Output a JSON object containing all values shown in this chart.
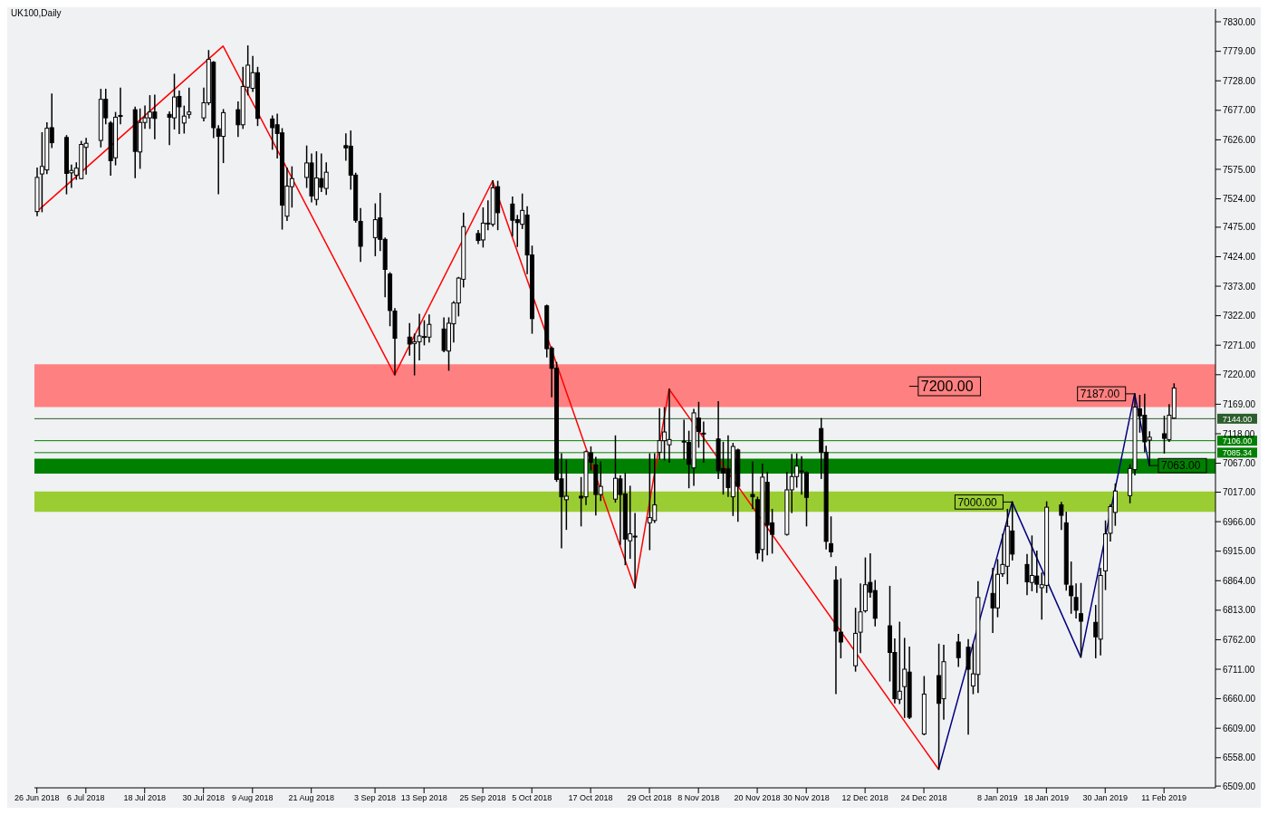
{
  "chart_data": {
    "type": "candlestick",
    "color": "#000000",
    "x": [
      "2018-06-26",
      "2018-06-27",
      "2018-06-28",
      "2018-06-29",
      "2018-07-02",
      "2018-07-03",
      "2018-07-04",
      "2018-07-05",
      "2018-07-06",
      "2018-07-09",
      "2018-07-10",
      "2018-07-11",
      "2018-07-12",
      "2018-07-13",
      "2018-07-16",
      "2018-07-17",
      "2018-07-18",
      "2018-07-19",
      "2018-07-20",
      "2018-07-23",
      "2018-07-24",
      "2018-07-25",
      "2018-07-26",
      "2018-07-27",
      "2018-07-30",
      "2018-07-31",
      "2018-08-01",
      "2018-08-02",
      "2018-08-03",
      "2018-08-06",
      "2018-08-07",
      "2018-08-08",
      "2018-08-09",
      "2018-08-10",
      "2018-08-13",
      "2018-08-14",
      "2018-08-15",
      "2018-08-16",
      "2018-08-17",
      "2018-08-20",
      "2018-08-21",
      "2018-08-22",
      "2018-08-23",
      "2018-08-24",
      "2018-08-28",
      "2018-08-29",
      "2018-08-30",
      "2018-08-31",
      "2018-09-03",
      "2018-09-04",
      "2018-09-05",
      "2018-09-06",
      "2018-09-07",
      "2018-09-10",
      "2018-09-11",
      "2018-09-12",
      "2018-09-13",
      "2018-09-14",
      "2018-09-17",
      "2018-09-18",
      "2018-09-19",
      "2018-09-20",
      "2018-09-21",
      "2018-09-24",
      "2018-09-25",
      "2018-09-26",
      "2018-09-27",
      "2018-09-28",
      "2018-10-01",
      "2018-10-02",
      "2018-10-03",
      "2018-10-04",
      "2018-10-05",
      "2018-10-08",
      "2018-10-09",
      "2018-10-10",
      "2018-10-11",
      "2018-10-12",
      "2018-10-15",
      "2018-10-16",
      "2018-10-17",
      "2018-10-18",
      "2018-10-19",
      "2018-10-22",
      "2018-10-23",
      "2018-10-24",
      "2018-10-25",
      "2018-10-26",
      "2018-10-29",
      "2018-10-30",
      "2018-10-31",
      "2018-11-01",
      "2018-11-02",
      "2018-11-05",
      "2018-11-06",
      "2018-11-07",
      "2018-11-08",
      "2018-11-09",
      "2018-11-12",
      "2018-11-13",
      "2018-11-14",
      "2018-11-15",
      "2018-11-16",
      "2018-11-19",
      "2018-11-20",
      "2018-11-21",
      "2018-11-22",
      "2018-11-23",
      "2018-11-26",
      "2018-11-27",
      "2018-11-28",
      "2018-11-29",
      "2018-11-30",
      "2018-12-03",
      "2018-12-04",
      "2018-12-05",
      "2018-12-06",
      "2018-12-07",
      "2018-12-10",
      "2018-12-11",
      "2018-12-12",
      "2018-12-13",
      "2018-12-14",
      "2018-12-17",
      "2018-12-18",
      "2018-12-19",
      "2018-12-20",
      "2018-12-21",
      "2018-12-24",
      "2018-12-27",
      "2018-12-28",
      "2018-12-31",
      "2019-01-02",
      "2019-01-03",
      "2019-01-04",
      "2019-01-07",
      "2019-01-08",
      "2019-01-09",
      "2019-01-10",
      "2019-01-11",
      "2019-01-14",
      "2019-01-15",
      "2019-01-16",
      "2019-01-17",
      "2019-01-18",
      "2019-01-21",
      "2019-01-22",
      "2019-01-23",
      "2019-01-24",
      "2019-01-25",
      "2019-01-28",
      "2019-01-29",
      "2019-01-30",
      "2019-01-31",
      "2019-02-01",
      "2019-02-04",
      "2019-02-05",
      "2019-02-06",
      "2019-02-07",
      "2019-02-08",
      "2019-02-11",
      "2019-02-12",
      "2019-02-13"
    ],
    "ohlc": [
      [
        7502,
        7577,
        7495,
        7561
      ],
      [
        7567,
        7638,
        7502,
        7580
      ],
      [
        7574,
        7655,
        7568,
        7646
      ],
      [
        7647,
        7705,
        7613,
        7621
      ],
      [
        7630,
        7633,
        7533,
        7568
      ],
      [
        7569,
        7582,
        7544,
        7573
      ],
      [
        7565,
        7586,
        7558,
        7577
      ],
      [
        7559,
        7623,
        7559,
        7618
      ],
      [
        7613,
        7628,
        7567,
        7620
      ],
      [
        7625,
        7713,
        7614,
        7696
      ],
      [
        7696,
        7713,
        7654,
        7664
      ],
      [
        7655,
        7657,
        7565,
        7590
      ],
      [
        7595,
        7673,
        7583,
        7665
      ],
      [
        7667,
        7715,
        7654,
        7668
      ],
      [
        7678,
        7682,
        7561,
        7606
      ],
      [
        7605,
        7679,
        7577,
        7656
      ],
      [
        7656,
        7684,
        7646,
        7664
      ],
      [
        7664,
        7702,
        7646,
        7674
      ],
      [
        7674,
        7703,
        7628,
        7663
      ],
      [
        7670,
        7674,
        7618,
        7665
      ],
      [
        7664,
        7739,
        7645,
        7700
      ],
      [
        7701,
        7710,
        7637,
        7683
      ],
      [
        7655,
        7684,
        7638,
        7667
      ],
      [
        7670,
        7715,
        7664,
        7674
      ],
      [
        7664,
        7715,
        7659,
        7690
      ],
      [
        7690,
        7780,
        7687,
        7765
      ],
      [
        7760,
        7761,
        7630,
        7647
      ],
      [
        7645,
        7650,
        7533,
        7632
      ],
      [
        7632,
        7678,
        7587,
        7673
      ],
      [
        7678,
        7691,
        7632,
        7652
      ],
      [
        7652,
        7751,
        7646,
        7718
      ],
      [
        7717,
        7788,
        7704,
        7755
      ],
      [
        7715,
        7770,
        7710,
        7742
      ],
      [
        7742,
        7751,
        7651,
        7663
      ],
      [
        7662,
        7667,
        7610,
        7647
      ],
      [
        7652,
        7670,
        7595,
        7637
      ],
      [
        7638,
        7645,
        7472,
        7513
      ],
      [
        7494,
        7577,
        7487,
        7546
      ],
      [
        7545,
        7579,
        7510,
        7559
      ],
      [
        7561,
        7615,
        7544,
        7586
      ],
      [
        7586,
        7601,
        7519,
        7529
      ],
      [
        7523,
        7605,
        7514,
        7560
      ],
      [
        7559,
        7601,
        7537,
        7544
      ],
      [
        7542,
        7586,
        7532,
        7570
      ],
      [
        7616,
        7636,
        7591,
        7612
      ],
      [
        7615,
        7641,
        7541,
        7565
      ],
      [
        7565,
        7568,
        7484,
        7487
      ],
      [
        7485,
        7507,
        7416,
        7442
      ],
      [
        7457,
        7515,
        7426,
        7488
      ],
      [
        7491,
        7533,
        7435,
        7454
      ],
      [
        7454,
        7456,
        7355,
        7402
      ],
      [
        7394,
        7396,
        7305,
        7331
      ],
      [
        7330,
        7334,
        7220,
        7283
      ],
      [
        7285,
        7308,
        7254,
        7273
      ],
      [
        7274,
        7290,
        7220,
        7277
      ],
      [
        7277,
        7324,
        7246,
        7287
      ],
      [
        7285,
        7313,
        7272,
        7286
      ],
      [
        7285,
        7323,
        7277,
        7307
      ],
      [
        7299,
        7318,
        7260,
        7262
      ],
      [
        7261,
        7318,
        7228,
        7309
      ],
      [
        7308,
        7346,
        7277,
        7344
      ],
      [
        7344,
        7388,
        7322,
        7387
      ],
      [
        7385,
        7499,
        7372,
        7476
      ],
      [
        7464,
        7469,
        7447,
        7452
      ],
      [
        7453,
        7508,
        7441,
        7482
      ],
      [
        7481,
        7520,
        7471,
        7482
      ],
      [
        7480,
        7555,
        7477,
        7543
      ],
      [
        7545,
        7554,
        7471,
        7500
      ],
      [
        7515,
        7527,
        7460,
        7487
      ],
      [
        7488,
        7495,
        7442,
        7483
      ],
      [
        7480,
        7532,
        7473,
        7504
      ],
      [
        7496,
        7510,
        7395,
        7427
      ],
      [
        7427,
        7442,
        7292,
        7317
      ],
      [
        7339,
        7340,
        7251,
        7265
      ],
      [
        7266,
        7268,
        7182,
        7231
      ],
      [
        7231,
        7241,
        7036,
        7039
      ],
      [
        7040,
        7083,
        6921,
        7009
      ],
      [
        7004,
        7072,
        6953,
        7010
      ],
      [
        7010,
        7042,
        6959,
        7007
      ],
      [
        7009,
        7088,
        6996,
        7087
      ],
      [
        7085,
        7095,
        7056,
        7069
      ],
      [
        7064,
        7077,
        6978,
        7013
      ],
      [
        7013,
        7069,
        7003,
        7027
      ],
      [
        7005,
        7114,
        7000,
        7041
      ],
      [
        7040,
        7045,
        6927,
        7013
      ],
      [
        7014,
        7049,
        6892,
        6936
      ],
      [
        6933,
        7027,
        6903,
        6945
      ],
      [
        6940,
        6980,
        6852,
        6941
      ],
      [
        6964,
        7083,
        6918,
        6973
      ],
      [
        6968,
        7083,
        6965,
        6995
      ],
      [
        7086,
        7161,
        7075,
        7106
      ],
      [
        7106,
        7163,
        7073,
        7121
      ],
      [
        7099,
        7195,
        7069,
        7108
      ],
      [
        7104,
        7141,
        7075,
        7105
      ],
      [
        7103,
        7122,
        7025,
        7065
      ],
      [
        7059,
        7160,
        7029,
        7154
      ],
      [
        7145,
        7172,
        7095,
        7122
      ],
      [
        7118,
        7138,
        7069,
        7119
      ],
      [
        7109,
        7173,
        7041,
        7054
      ],
      [
        7058,
        7103,
        7014,
        7050
      ],
      [
        7057,
        7114,
        7010,
        7025
      ],
      [
        7009,
        7101,
        6977,
        7096
      ],
      [
        7090,
        7091,
        6967,
        7027
      ],
      [
        7013,
        7069,
        6989,
        7009
      ],
      [
        7004,
        7008,
        6902,
        6912
      ],
      [
        6918,
        7065,
        6898,
        7043
      ],
      [
        7034,
        7051,
        6909,
        6960
      ],
      [
        6964,
        6987,
        6912,
        6944
      ],
      [
        6944,
        7051,
        6943,
        7021
      ],
      [
        7021,
        7082,
        6982,
        7044
      ],
      [
        7044,
        7083,
        7026,
        7062
      ],
      [
        7053,
        7078,
        7014,
        7054
      ],
      [
        7051,
        7052,
        6959,
        7008
      ],
      [
        7127,
        7144,
        7041,
        7086
      ],
      [
        7086,
        7096,
        6919,
        6932
      ],
      [
        6928,
        6974,
        6906,
        6914
      ],
      [
        6865,
        6888,
        6669,
        6777
      ],
      [
        6775,
        6867,
        6731,
        6758
      ],
      [
        6717,
        6816,
        6708,
        6773
      ],
      [
        6775,
        6858,
        6740,
        6810
      ],
      [
        6812,
        6903,
        6810,
        6857
      ],
      [
        6861,
        6910,
        6836,
        6844
      ],
      [
        6847,
        6864,
        6786,
        6799
      ],
      [
        6786,
        6854,
        6691,
        6740
      ],
      [
        6740,
        6763,
        6653,
        6660
      ],
      [
        6659,
        6792,
        6652,
        6673
      ],
      [
        6681,
        6764,
        6628,
        6711
      ],
      [
        6706,
        6749,
        6626,
        6628
      ],
      [
        6599,
        6698,
        6598,
        6668
      ],
      [
        6700,
        6754,
        6538,
        6652
      ],
      [
        6660,
        6752,
        6625,
        6724
      ],
      [
        6758,
        6771,
        6716,
        6731
      ],
      [
        6749,
        6762,
        6599,
        6711
      ],
      [
        6682,
        6754,
        6669,
        6703
      ],
      [
        6702,
        6862,
        6671,
        6835
      ],
      [
        6842,
        6885,
        6775,
        6817
      ],
      [
        6817,
        6900,
        6802,
        6875
      ],
      [
        6876,
        6944,
        6872,
        6892
      ],
      [
        6889,
        6987,
        6859,
        6958
      ],
      [
        6950,
        7000,
        6900,
        6910
      ],
      [
        6892,
        6909,
        6840,
        6862
      ],
      [
        6861,
        6941,
        6847,
        6873
      ],
      [
        6872,
        6915,
        6844,
        6858
      ],
      [
        6852,
        6877,
        6798,
        6857
      ],
      [
        6856,
        7000,
        6844,
        6991
      ],
      [
        6995,
        6999,
        6953,
        6977
      ],
      [
        6964,
        6982,
        6848,
        6858
      ],
      [
        6855,
        6896,
        6808,
        6838
      ],
      [
        6835,
        6858,
        6800,
        6813
      ],
      [
        6807,
        6859,
        6732,
        6794
      ],
      [
        6792,
        6821,
        6731,
        6767
      ],
      [
        6763,
        6885,
        6736,
        6873
      ],
      [
        6881,
        6967,
        6849,
        6945
      ],
      [
        6946,
        6995,
        6933,
        6992
      ],
      [
        6982,
        7031,
        6960,
        7019
      ],
      [
        7011,
        7064,
        6999,
        7058
      ],
      [
        7056,
        7187,
        7047,
        7164
      ],
      [
        7161,
        7184,
        7121,
        7149
      ],
      [
        7150,
        7186,
        7087,
        7104
      ],
      [
        7107,
        7121,
        7063,
        7112
      ],
      [
        7118,
        7148,
        7085,
        7110
      ],
      [
        7108,
        7168,
        7105,
        7150
      ],
      [
        7145,
        7204,
        7145,
        7197
      ]
    ],
    "series": [
      {
        "type": "line",
        "color": "#ff0000",
        "x": [
          "2018-06-26",
          "2018-08-03",
          "2018-09-07",
          "2018-09-27",
          "2018-10-26",
          "2018-11-02",
          "2018-12-27"
        ],
        "values": [
          7502,
          7788,
          7220,
          7555,
          6852,
          7195,
          6538
        ]
      },
      {
        "type": "line",
        "color": "#000080",
        "x": [
          "2018-12-27",
          "2019-01-11",
          "2019-01-25",
          "2019-02-05",
          "2019-02-08"
        ],
        "values": [
          6538,
          7000,
          6732,
          7187,
          7063
        ]
      }
    ],
    "xlim": [
      "2018-06-26",
      "2019-02-21"
    ],
    "xticks": [
      {
        "value": "2018-06-26",
        "label": "26 Jun 2018"
      },
      {
        "value": "2018-07-06",
        "label": "6 Jul 2018"
      },
      {
        "value": "2018-07-18",
        "label": "18 Jul 2018"
      },
      {
        "value": "2018-07-30",
        "label": "30 Jul 2018"
      },
      {
        "value": "2018-08-09",
        "label": "9 Aug 2018"
      },
      {
        "value": "2018-08-21",
        "label": "21 Aug 2018"
      },
      {
        "value": "2018-09-03",
        "label": "3 Sep 2018"
      },
      {
        "value": "2018-09-13",
        "label": "13 Sep 2018"
      },
      {
        "value": "2018-09-25",
        "label": "25 Sep 2018"
      },
      {
        "value": "2018-10-05",
        "label": "5 Oct 2018"
      },
      {
        "value": "2018-10-17",
        "label": "17 Oct 2018"
      },
      {
        "value": "2018-10-29",
        "label": "29 Oct 2018"
      },
      {
        "value": "2018-11-08",
        "label": "8 Nov 2018"
      },
      {
        "value": "2018-11-20",
        "label": "20 Nov 2018"
      },
      {
        "value": "2018-11-30",
        "label": "30 Nov 2018"
      },
      {
        "value": "2018-12-12",
        "label": "12 Dec 2018"
      },
      {
        "value": "2018-12-24",
        "label": "24 Dec 2018"
      },
      {
        "value": "2019-01-08",
        "label": "8 Jan 2019"
      },
      {
        "value": "2019-01-18",
        "label": "18 Jan 2019"
      },
      {
        "value": "2019-01-30",
        "label": "30 Jan 2019"
      },
      {
        "value": "2019-02-11",
        "label": "11 Feb 2019"
      }
    ],
    "ylim": [
      6506,
      7852
    ],
    "yticks": [
      {
        "value": 6509,
        "label": "6509.00"
      },
      {
        "value": 6558,
        "label": "6558.00"
      },
      {
        "value": 6609,
        "label": "6609.00"
      },
      {
        "value": 6660,
        "label": "6660.00"
      },
      {
        "value": 6711,
        "label": "6711.00"
      },
      {
        "value": 6762,
        "label": "6762.00"
      },
      {
        "value": 6813,
        "label": "6813.00"
      },
      {
        "value": 6864,
        "label": "6864.00"
      },
      {
        "value": 6915,
        "label": "6915.00"
      },
      {
        "value": 6966,
        "label": "6966.00"
      },
      {
        "value": 7017,
        "label": "7017.00"
      },
      {
        "value": 7067,
        "label": "7067.00"
      },
      {
        "value": 7118,
        "label": "7118.00"
      },
      {
        "value": 7169,
        "label": "7169.00"
      },
      {
        "value": 7220,
        "label": "7220.00"
      },
      {
        "value": 7271,
        "label": "7271.00"
      },
      {
        "value": 7322,
        "label": "7322.00"
      },
      {
        "value": 7373,
        "label": "7373.00"
      },
      {
        "value": 7424,
        "label": "7424.00"
      },
      {
        "value": 7475,
        "label": "7475.00"
      },
      {
        "value": 7524,
        "label": "7524.00"
      },
      {
        "value": 7575,
        "label": "7575.00"
      },
      {
        "value": 7626,
        "label": "7626.00"
      },
      {
        "value": 7677,
        "label": "7677.00"
      },
      {
        "value": 7728,
        "label": "7728.00"
      },
      {
        "value": 7779,
        "label": "7779.00"
      },
      {
        "value": 7830,
        "label": "7830.00"
      }
    ],
    "bands": [
      {
        "axis": "y",
        "from": 7204,
        "to": 7238,
        "color": "#ff8080"
      },
      {
        "axis": "y",
        "from": 7164,
        "to": 7204,
        "color": "#ff8080"
      },
      {
        "axis": "y",
        "from": 6983,
        "to": 7018,
        "color": "#9acd32"
      },
      {
        "axis": "y",
        "from": 7049,
        "to": 7075,
        "color": "#008000"
      }
    ],
    "ref_lines": [
      {
        "axis": "y",
        "value": 7144,
        "label": "7144.00",
        "color": "#2e5e2e"
      },
      {
        "axis": "y",
        "value": 7106,
        "label": "7106.00",
        "color": "#008000"
      },
      {
        "axis": "y",
        "value": 7085.34,
        "label": "7085.34",
        "color": "#008000"
      }
    ],
    "annotations": [
      "UK100,Daily",
      {
        "text": "7200.00",
        "x": "2018-12-21",
        "y": 7200
      },
      {
        "text": "7187.00",
        "x": "2019-02-05",
        "y": 7187
      },
      {
        "text": "7063.00",
        "x": "2019-02-08",
        "y": 7063
      },
      {
        "text": "7000.00",
        "x": "2019-01-11",
        "y": 7000
      }
    ]
  }
}
